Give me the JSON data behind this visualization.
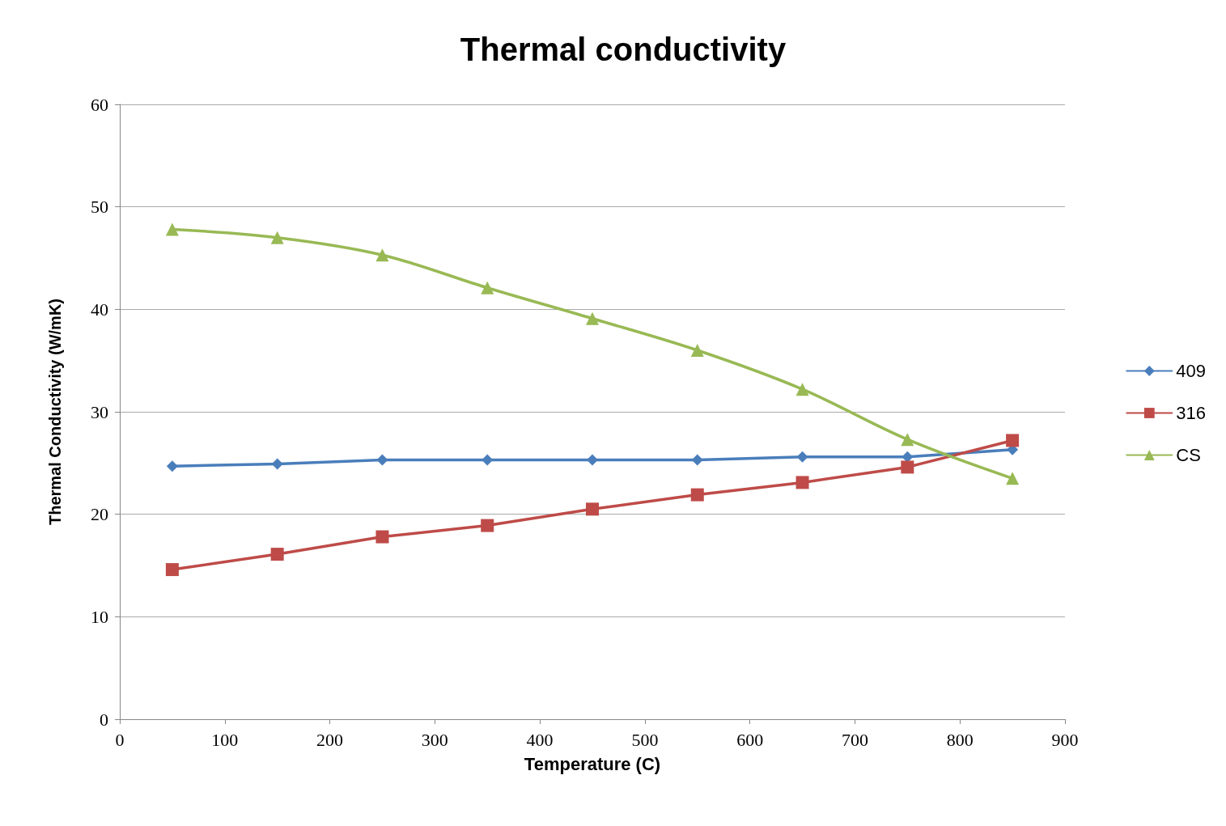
{
  "chart_data": {
    "type": "line",
    "title": "Thermal conductivity",
    "xlabel": "Temperature (C)",
    "ylabel": "Thermal Conductivity (W/mK)",
    "x": [
      50,
      150,
      250,
      350,
      450,
      550,
      650,
      750,
      850
    ],
    "xlim": [
      0,
      900
    ],
    "xticks": [
      0,
      100,
      200,
      300,
      400,
      500,
      600,
      700,
      800,
      900
    ],
    "ylim": [
      0,
      60
    ],
    "yticks": [
      0,
      10,
      20,
      30,
      40,
      50,
      60
    ],
    "grid": "y",
    "legend": "right",
    "line_style": "solid",
    "series": [
      {
        "name": "409",
        "color": "#4a7ebb",
        "marker": "diamond",
        "values": [
          24.7,
          24.9,
          25.3,
          25.3,
          25.3,
          25.3,
          25.6,
          25.6,
          26.3
        ]
      },
      {
        "name": "316",
        "color": "#be4b48",
        "marker": "square",
        "values": [
          14.6,
          16.1,
          17.8,
          18.9,
          20.5,
          21.9,
          23.1,
          24.6,
          27.2
        ]
      },
      {
        "name": "CS",
        "color": "#98b954",
        "marker": "triangle",
        "values": [
          47.8,
          47.0,
          45.3,
          42.1,
          39.1,
          36.0,
          32.2,
          27.3,
          23.5
        ]
      }
    ]
  }
}
